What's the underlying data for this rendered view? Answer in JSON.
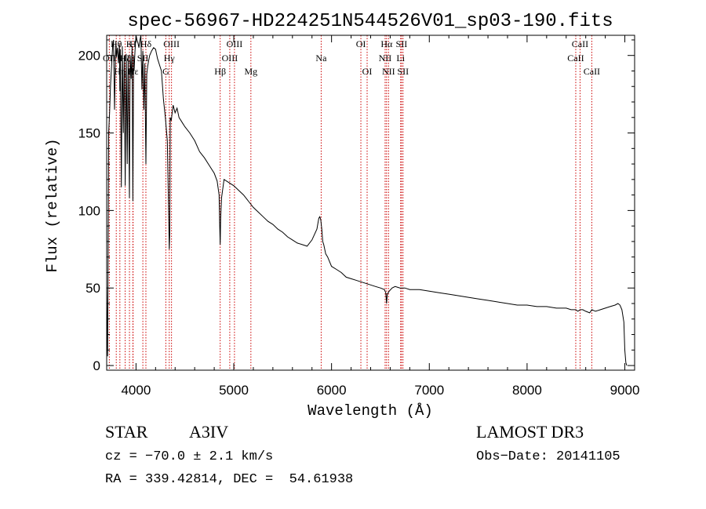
{
  "chart_data": {
    "type": "line",
    "title": "spec-56967-HD224251N544526V01_sp03-190.fits",
    "xlabel": "Wavelength (Å)",
    "ylabel": "Flux (relative)",
    "xlim": [
      3700,
      9100
    ],
    "ylim": [
      -3,
      213
    ],
    "xticks": [
      4000,
      5000,
      6000,
      7000,
      8000,
      9000
    ],
    "yticks": [
      0,
      50,
      100,
      150,
      200
    ],
    "line_color": "#000000",
    "marker_color": "#cc0000",
    "series": [
      {
        "name": "flux",
        "x": [
          3700,
          3705,
          3710,
          3715,
          3720,
          3730,
          3740,
          3750,
          3760,
          3770,
          3780,
          3790,
          3795,
          3800,
          3810,
          3820,
          3830,
          3835,
          3840,
          3850,
          3860,
          3870,
          3880,
          3889,
          3900,
          3910,
          3920,
          3933,
          3940,
          3950,
          3960,
          3968,
          3975,
          3980,
          3990,
          4000,
          4010,
          4020,
          4030,
          4040,
          4050,
          4060,
          4070,
          4080,
          4090,
          4101,
          4110,
          4120,
          4130,
          4140,
          4160,
          4180,
          4200,
          4220,
          4240,
          4260,
          4280,
          4300,
          4320,
          4340,
          4345,
          4350,
          4360,
          4380,
          4400,
          4420,
          4440,
          4460,
          4480,
          4500,
          4550,
          4600,
          4650,
          4700,
          4750,
          4800,
          4830,
          4850,
          4856,
          4861,
          4866,
          4875,
          4900,
          4950,
          5000,
          5050,
          5100,
          5150,
          5200,
          5250,
          5300,
          5350,
          5400,
          5450,
          5500,
          5550,
          5600,
          5650,
          5700,
          5750,
          5800,
          5850,
          5870,
          5880,
          5890,
          5900,
          5910,
          5920,
          5940,
          5960,
          6000,
          6050,
          6100,
          6150,
          6200,
          6250,
          6300,
          6350,
          6400,
          6450,
          6500,
          6540,
          6555,
          6563,
          6570,
          6590,
          6620,
          6650,
          6700,
          6750,
          6800,
          6900,
          7000,
          7100,
          7200,
          7300,
          7400,
          7500,
          7600,
          7700,
          7800,
          7900,
          8000,
          8100,
          8200,
          8300,
          8400,
          8450,
          8498,
          8520,
          8542,
          8570,
          8600,
          8640,
          8662,
          8700,
          8750,
          8800,
          8850,
          8900,
          8930,
          8950,
          8970,
          8990,
          9000,
          9010,
          9020
        ],
        "y": [
          52,
          25,
          6,
          80,
          150,
          163,
          182,
          193,
          205,
          210,
          165,
          200,
          208,
          199,
          205,
          195,
          207,
          177,
          204,
          115,
          206,
          150,
          200,
          116,
          201,
          130,
          200,
          108,
          200,
          185,
          206,
          106,
          200,
          190,
          203,
          213,
          210,
          208,
          205,
          210,
          213,
          178,
          203,
          165,
          195,
          130,
          188,
          193,
          197,
          200,
          203,
          205,
          204,
          198,
          194,
          190,
          172,
          160,
          145,
          75,
          85,
          160,
          158,
          168,
          163,
          166,
          160,
          158,
          156,
          154,
          150,
          145,
          138,
          134,
          129,
          124,
          119,
          110,
          90,
          78,
          95,
          108,
          120,
          118,
          116,
          113,
          110,
          106,
          102,
          99,
          96,
          93,
          91,
          88,
          86,
          83,
          81,
          79,
          78,
          77,
          81,
          88,
          95,
          96,
          94,
          88,
          80,
          78,
          72,
          70,
          64,
          62,
          60,
          57,
          56,
          55,
          54,
          53,
          52,
          51,
          50,
          49,
          47,
          40,
          46,
          48,
          50,
          51,
          50,
          50,
          49,
          49,
          48,
          47,
          46,
          45,
          44,
          43,
          42,
          41,
          40,
          39,
          39,
          38,
          38,
          37,
          37,
          36,
          36,
          35,
          36,
          36,
          35,
          34,
          36,
          35,
          36,
          37,
          38,
          39,
          40,
          39,
          36,
          28,
          10,
          2,
          0
        ]
      }
    ],
    "line_labels": [
      {
        "name": "OII",
        "x": 3727,
        "row": 1
      },
      {
        "name": "Hθ",
        "x": 3798,
        "row": 0
      },
      {
        "name": "Hη",
        "x": 3835,
        "row": 2
      },
      {
        "name": "Hζ",
        "x": 3889,
        "row": 1
      },
      {
        "name": "K",
        "x": 3933,
        "row": 0
      },
      {
        "name": "Hε",
        "x": 3970,
        "row": 2
      },
      {
        "name": "H",
        "x": 3968,
        "row": 0
      },
      {
        "name": "SII",
        "x": 4070,
        "row": 1
      },
      {
        "name": "Hδ",
        "x": 4101,
        "row": 0
      },
      {
        "name": "G",
        "x": 4305,
        "row": 2
      },
      {
        "name": "Hγ",
        "x": 4340,
        "row": 1
      },
      {
        "name": "OIII",
        "x": 4363,
        "row": 0
      },
      {
        "name": "Hβ",
        "x": 4861,
        "row": 2
      },
      {
        "name": "OIII",
        "x": 4959,
        "row": 1
      },
      {
        "name": "OIII",
        "x": 5007,
        "row": 0
      },
      {
        "name": "Mg",
        "x": 5175,
        "row": 2
      },
      {
        "name": "Na",
        "x": 5894,
        "row": 1
      },
      {
        "name": "OI",
        "x": 6300,
        "row": 0
      },
      {
        "name": "OI",
        "x": 6364,
        "row": 2
      },
      {
        "name": "NII",
        "x": 6548,
        "row": 1
      },
      {
        "name": "Hα",
        "x": 6563,
        "row": 0
      },
      {
        "name": "NII",
        "x": 6583,
        "row": 2
      },
      {
        "name": "Li",
        "x": 6707,
        "row": 1
      },
      {
        "name": "SII",
        "x": 6716,
        "row": 0
      },
      {
        "name": "SII",
        "x": 6731,
        "row": 2
      },
      {
        "name": "CaII",
        "x": 8498,
        "row": 1
      },
      {
        "name": "CaII",
        "x": 8542,
        "row": 0
      },
      {
        "name": "CaII",
        "x": 8662,
        "row": 2
      }
    ]
  },
  "info": {
    "class": "STAR",
    "subclass": "A3IV",
    "survey": "LAMOST DR3",
    "cz": "cz = −70.0 ± 2.1 km/s",
    "obs_date": "Obs−Date: 20141105",
    "coords": "RA = 339.42814, DEC =  54.61938"
  }
}
